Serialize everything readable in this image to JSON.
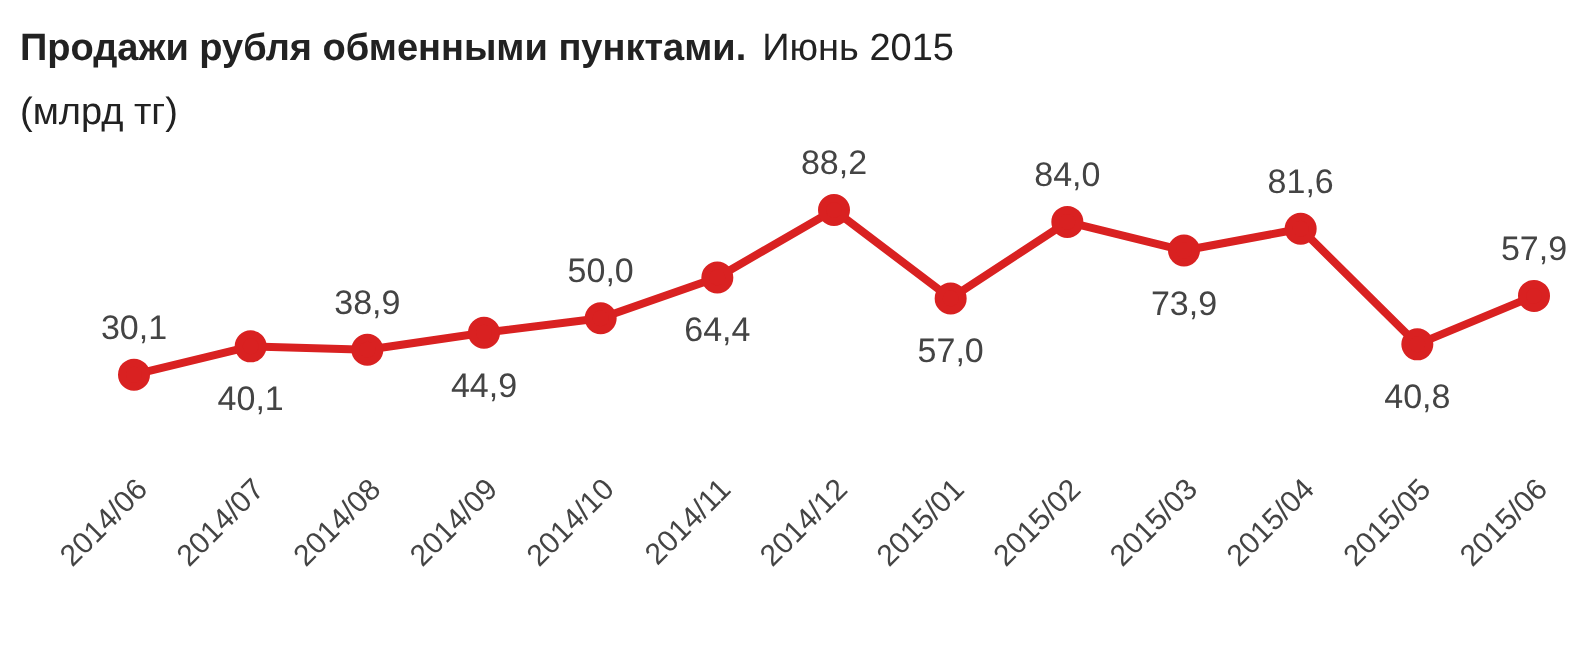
{
  "chart_data": {
    "type": "line",
    "title": "Продажи рубля обменными пунктами.",
    "subtitle": "Июнь 2015",
    "ylabel": "(млрд тг)",
    "categories": [
      "2014/06",
      "2014/07",
      "2014/08",
      "2014/09",
      "2014/10",
      "2014/11",
      "2014/12",
      "2015/01",
      "2015/02",
      "2015/03",
      "2015/04",
      "2015/05",
      "2015/06"
    ],
    "series": [
      {
        "color": "#d92121",
        "values": [
          30.1,
          40.1,
          38.9,
          44.9,
          50.0,
          64.4,
          88.2,
          57.0,
          84.0,
          73.9,
          81.6,
          40.8,
          57.9
        ],
        "value_labels": [
          "30,1",
          "40,1",
          "38,9",
          "44,9",
          "50,0",
          "64,4",
          "88,2",
          "57,0",
          "84,0",
          "73,9",
          "81,6",
          "40,8",
          "57,9"
        ]
      }
    ],
    "marker": "circle",
    "line_style": "solid"
  }
}
